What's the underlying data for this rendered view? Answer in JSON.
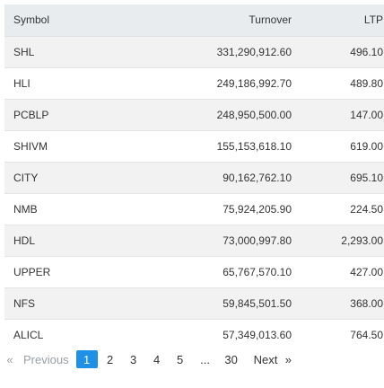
{
  "table": {
    "headers": {
      "symbol": "Symbol",
      "turnover": "Turnover",
      "ltp": "LTP"
    },
    "rows": [
      {
        "symbol": "SHL",
        "turnover": "331,290,912.60",
        "ltp": "496.10"
      },
      {
        "symbol": "HLI",
        "turnover": "249,186,992.70",
        "ltp": "489.80"
      },
      {
        "symbol": "PCBLP",
        "turnover": "248,950,500.00",
        "ltp": "147.00"
      },
      {
        "symbol": "SHIVM",
        "turnover": "155,153,618.10",
        "ltp": "619.00"
      },
      {
        "symbol": "CITY",
        "turnover": "90,162,762.10",
        "ltp": "695.10"
      },
      {
        "symbol": "NMB",
        "turnover": "75,924,205.90",
        "ltp": "224.50"
      },
      {
        "symbol": "HDL",
        "turnover": "73,000,997.80",
        "ltp": "2,293.00"
      },
      {
        "symbol": "UPPER",
        "turnover": "65,767,570.10",
        "ltp": "427.00"
      },
      {
        "symbol": "NFS",
        "turnover": "59,845,501.50",
        "ltp": "368.00"
      },
      {
        "symbol": "ALICL",
        "turnover": "57,349,013.60",
        "ltp": "764.50"
      }
    ]
  },
  "pagination": {
    "first_glyph": "«",
    "previous_label": "Previous",
    "pages": [
      "1",
      "2",
      "3",
      "4",
      "5"
    ],
    "ellipsis": "...",
    "last_page": "30",
    "next_label": "Next",
    "last_glyph": "»",
    "current_page": "1",
    "active_color": "#1e90e6"
  }
}
